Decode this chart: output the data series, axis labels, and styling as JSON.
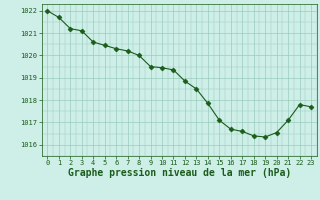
{
  "x": [
    0,
    1,
    2,
    3,
    4,
    5,
    6,
    7,
    8,
    9,
    10,
    11,
    12,
    13,
    14,
    15,
    16,
    17,
    18,
    19,
    20,
    21,
    22,
    23
  ],
  "y": [
    1022.0,
    1021.7,
    1021.2,
    1021.1,
    1020.6,
    1020.45,
    1020.3,
    1020.2,
    1020.0,
    1019.5,
    1019.45,
    1019.35,
    1018.85,
    1018.5,
    1017.85,
    1017.1,
    1016.7,
    1016.6,
    1016.4,
    1016.35,
    1016.55,
    1017.1,
    1017.8,
    1017.7
  ],
  "line_color": "#1a5c1a",
  "marker": "D",
  "marker_size": 2.5,
  "bg_color": "#ceeee8",
  "grid_color": "#99ccbb",
  "xlabel": "Graphe pression niveau de la mer (hPa)",
  "xlabel_color": "#1a5c1a",
  "tick_color": "#1a5c1a",
  "ylim": [
    1015.5,
    1022.3
  ],
  "xlim": [
    -0.5,
    23.5
  ],
  "yticks": [
    1016,
    1017,
    1018,
    1019,
    1020,
    1021,
    1022
  ],
  "xticks": [
    0,
    1,
    2,
    3,
    4,
    5,
    6,
    7,
    8,
    9,
    10,
    11,
    12,
    13,
    14,
    15,
    16,
    17,
    18,
    19,
    20,
    21,
    22,
    23
  ],
  "tick_fontsize": 5.0,
  "xlabel_fontsize": 7.0,
  "linewidth": 0.8
}
